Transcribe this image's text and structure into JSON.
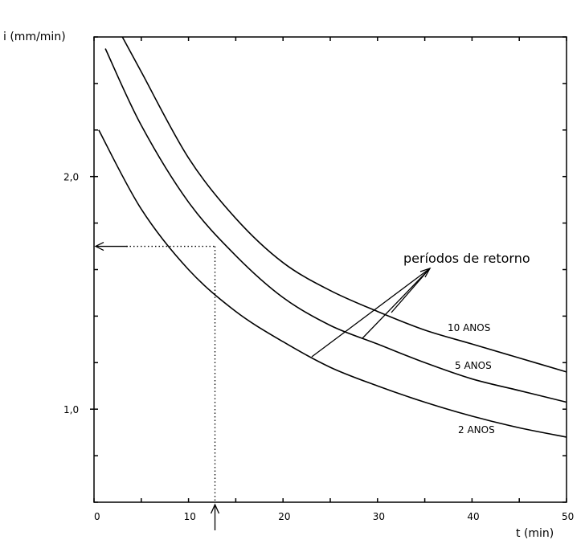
{
  "chart_data": {
    "type": "line",
    "title": "",
    "xlabel": "t (min)",
    "ylabel": "i (mm/min)",
    "xlim": [
      0,
      50
    ],
    "ylim": [
      0.6,
      2.6
    ],
    "x_ticks": [
      0,
      10,
      20,
      30,
      40,
      50
    ],
    "y_ticks": [
      1.0,
      2.0
    ],
    "x_tick_labels": [
      "0",
      "10",
      "20",
      "30",
      "40",
      "50"
    ],
    "y_tick_labels": [
      "1,0",
      "2,0"
    ],
    "grid": false,
    "series": [
      {
        "name": "10 ANOS",
        "x": [
          3,
          5,
          10,
          15,
          20,
          25,
          30,
          35,
          40,
          45,
          50
        ],
        "y": [
          2.6,
          2.45,
          2.08,
          1.82,
          1.63,
          1.51,
          1.42,
          1.34,
          1.28,
          1.22,
          1.16
        ]
      },
      {
        "name": "5 ANOS",
        "x": [
          1.2,
          5,
          10,
          15,
          20,
          25,
          30,
          35,
          40,
          45,
          50
        ],
        "y": [
          2.55,
          2.22,
          1.89,
          1.66,
          1.48,
          1.36,
          1.28,
          1.2,
          1.13,
          1.08,
          1.03
        ]
      },
      {
        "name": "2 ANOS",
        "x": [
          0.5,
          5,
          10,
          15,
          20,
          25,
          30,
          35,
          40,
          45,
          50
        ],
        "y": [
          2.2,
          1.86,
          1.6,
          1.42,
          1.29,
          1.18,
          1.1,
          1.03,
          0.97,
          0.92,
          0.88
        ]
      }
    ],
    "annotations": {
      "callout": "períodos de retorno",
      "reading_point": {
        "t": 12.8,
        "i": 1.7
      }
    }
  }
}
